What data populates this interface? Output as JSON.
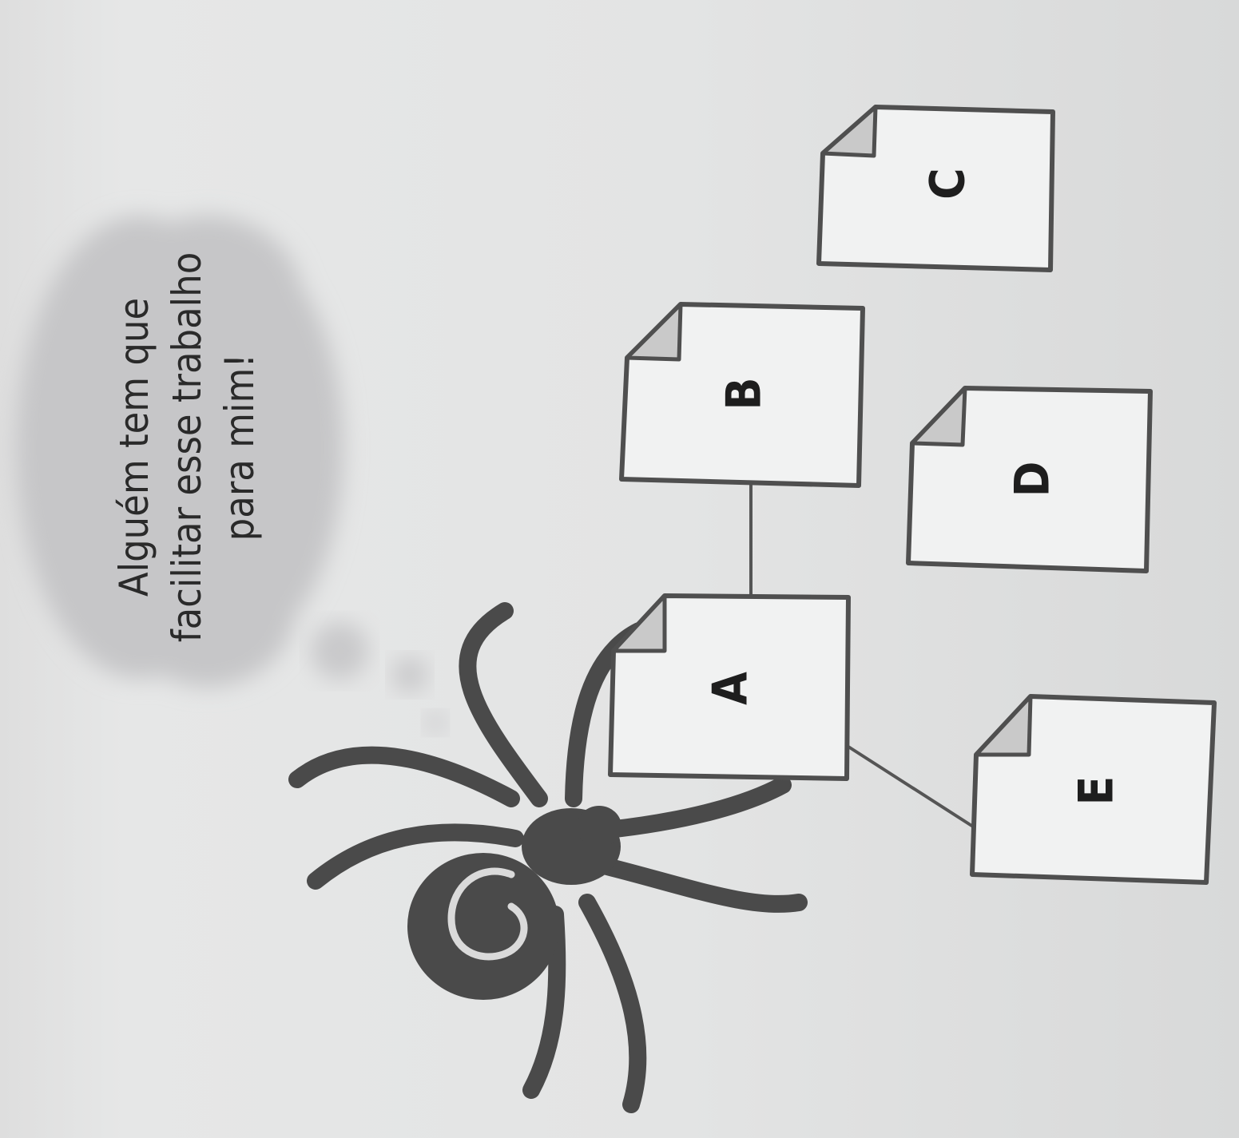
{
  "thought_bubble": {
    "lines": [
      "Alguém tem que",
      "facilitar esse trabalho",
      "para mim!"
    ]
  },
  "pages": [
    {
      "id": "A",
      "label": "A"
    },
    {
      "id": "B",
      "label": "B"
    },
    {
      "id": "C",
      "label": "C"
    },
    {
      "id": "D",
      "label": "D"
    },
    {
      "id": "E",
      "label": "E"
    }
  ],
  "links": [
    {
      "from": "A",
      "to": "B"
    },
    {
      "from": "A",
      "to": "E"
    }
  ],
  "colors": {
    "spider": "#4a4a4a",
    "bubble": "#c4c4c6",
    "page_fill": "#f1f2f2",
    "page_border": "#4f4f4f",
    "page_fold": "#c9c9c9"
  }
}
